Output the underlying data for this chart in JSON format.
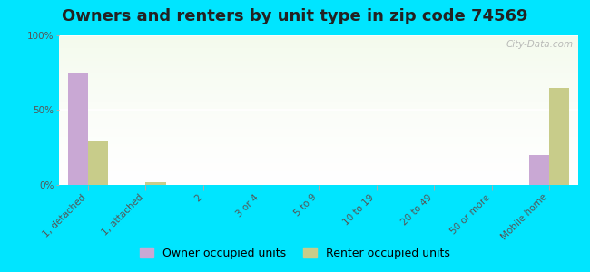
{
  "title": "Owners and renters by unit type in zip code 74569",
  "categories": [
    "1, detached",
    "1, attached",
    "2",
    "3 or 4",
    "5 to 9",
    "10 to 19",
    "20 to 49",
    "50 or more",
    "Mobile home"
  ],
  "owner_values": [
    75,
    0,
    0,
    0,
    0,
    0,
    0,
    0,
    20
  ],
  "renter_values": [
    30,
    2,
    0,
    0,
    0,
    0,
    0,
    0,
    65
  ],
  "owner_color": "#c9a8d4",
  "renter_color": "#c8cc8a",
  "background_color": "#00e5ff",
  "plot_bg_color": "#e8f0d0",
  "ylabel_ticks": [
    "0%",
    "50%",
    "100%"
  ],
  "ytick_values": [
    0,
    50,
    100
  ],
  "ylim": [
    0,
    100
  ],
  "bar_width": 0.35,
  "title_fontsize": 13,
  "tick_fontsize": 7.5,
  "legend_fontsize": 9,
  "owner_label": "Owner occupied units",
  "renter_label": "Renter occupied units",
  "watermark": "City-Data.com"
}
